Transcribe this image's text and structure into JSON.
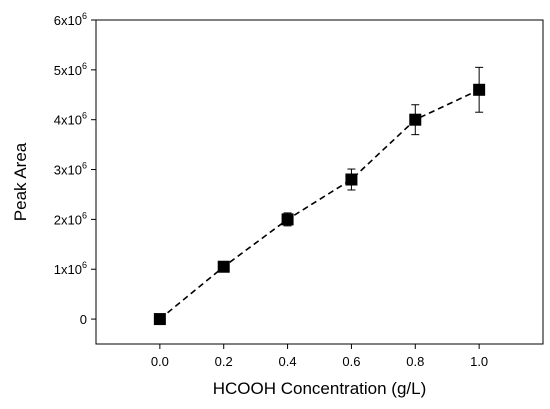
{
  "chart_data": {
    "type": "scatter",
    "title": "",
    "xlabel": "HCOOH Concentration (g/L)",
    "ylabel": "Peak Area",
    "xlim": [
      -0.2,
      1.2
    ],
    "ylim": [
      -500000,
      6000000
    ],
    "x_ticks": [
      0.0,
      0.2,
      0.4,
      0.6,
      0.8,
      1.0
    ],
    "x_tick_labels": [
      "0.0",
      "0.2",
      "0.4",
      "0.6",
      "0.8",
      "1.0"
    ],
    "y_ticks": [
      0,
      1000000,
      2000000,
      3000000,
      4000000,
      5000000,
      6000000
    ],
    "y_tick_labels": [
      {
        "base": "0",
        "exp": ""
      },
      {
        "base": "1x10",
        "exp": "6"
      },
      {
        "base": "2x10",
        "exp": "6"
      },
      {
        "base": "3x10",
        "exp": "6"
      },
      {
        "base": "4x10",
        "exp": "6"
      },
      {
        "base": "5x10",
        "exp": "6"
      },
      {
        "base": "6x10",
        "exp": "6"
      }
    ],
    "series": [
      {
        "x": [
          0.0,
          0.2,
          0.4,
          0.6,
          0.8,
          1.0
        ],
        "y": [
          0,
          1050000,
          2000000,
          2800000,
          4000000,
          4600000
        ],
        "error": [
          0,
          60000,
          130000,
          210000,
          300000,
          450000
        ],
        "marker": "square",
        "line": "dashed",
        "color": "#000000"
      }
    ],
    "legend": "none",
    "grid": false
  }
}
